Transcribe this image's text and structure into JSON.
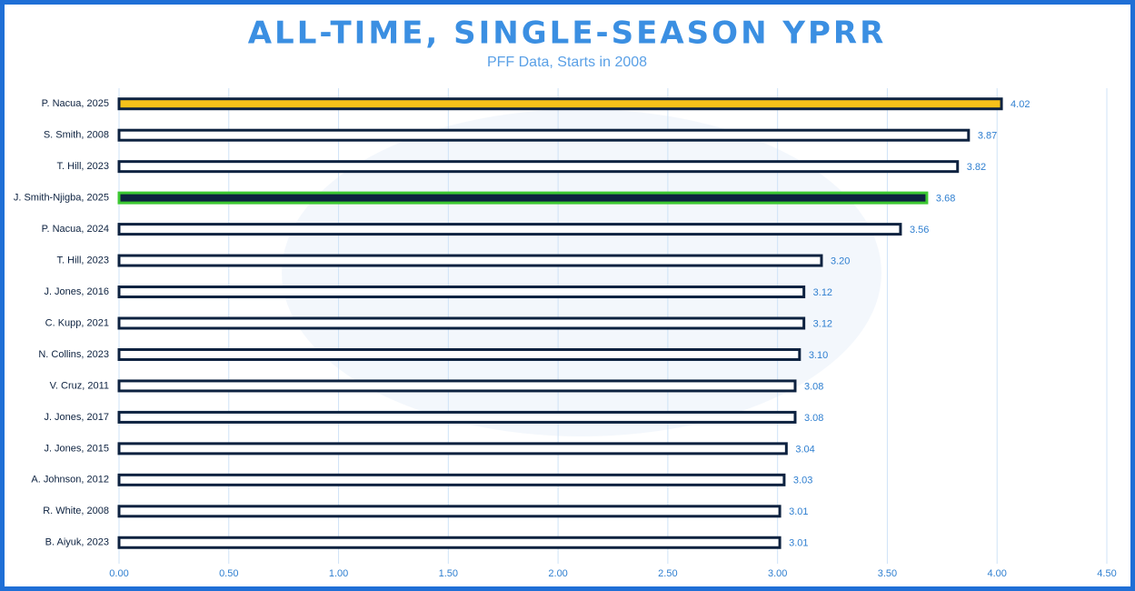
{
  "chart_data": {
    "type": "bar",
    "orientation": "horizontal",
    "title": "ALL-TIME, SINGLE-SEASON YPRR",
    "subtitle": "PFF Data, Starts in 2008",
    "categories": [
      "P. Nacua, 2025",
      "S. Smith, 2008",
      "T. Hill, 2023",
      "J. Smith-Njigba, 2025",
      "P. Nacua, 2024",
      "T. Hill, 2023",
      "J. Jones, 2016",
      "C. Kupp, 2021",
      "N. Collins, 2023",
      "V. Cruz, 2011",
      "J. Jones, 2017",
      "J. Jones, 2015",
      "A. Johnson, 2012",
      "R. White, 2008",
      "B. Aiyuk, 2023"
    ],
    "values": [
      4.02,
      3.87,
      3.82,
      3.68,
      3.56,
      3.2,
      3.12,
      3.12,
      3.1,
      3.08,
      3.08,
      3.04,
      3.03,
      3.01,
      3.01
    ],
    "value_labels": [
      "4.02",
      "3.87",
      "3.82",
      "3.68",
      "3.56",
      "3.20",
      "3.12",
      "3.12",
      "3.10",
      "3.08",
      "3.08",
      "3.04",
      "3.03",
      "3.01",
      "3.01"
    ],
    "colors": [
      "#f6c21a",
      "#ffffff",
      "#ffffff",
      "#0d2240",
      "#ffffff",
      "#ffffff",
      "#ffffff",
      "#ffffff",
      "#ffffff",
      "#ffffff",
      "#ffffff",
      "#ffffff",
      "#ffffff",
      "#ffffff",
      "#ffffff"
    ],
    "edge_colors": [
      "#0d2240",
      "#0d2240",
      "#0d2240",
      "#3cc832",
      "#0d2240",
      "#0d2240",
      "#0d2240",
      "#0d2240",
      "#0d2240",
      "#0d2240",
      "#0d2240",
      "#0d2240",
      "#0d2240",
      "#0d2240",
      "#0d2240"
    ],
    "xlim": [
      0,
      4.5
    ],
    "xticks": [
      {
        "value": 0,
        "label": "0.00"
      },
      {
        "value": 0.5,
        "label": "0.50"
      },
      {
        "value": 1,
        "label": "1.00"
      },
      {
        "value": 1.5,
        "label": "1.50"
      },
      {
        "value": 2,
        "label": "2.00"
      },
      {
        "value": 2.5,
        "label": "2.50"
      },
      {
        "value": 3,
        "label": "3.00"
      },
      {
        "value": 3.5,
        "label": "3.50"
      },
      {
        "value": 4,
        "label": "4.00"
      },
      {
        "value": 4.5,
        "label": "4.50"
      }
    ],
    "grid": true
  }
}
